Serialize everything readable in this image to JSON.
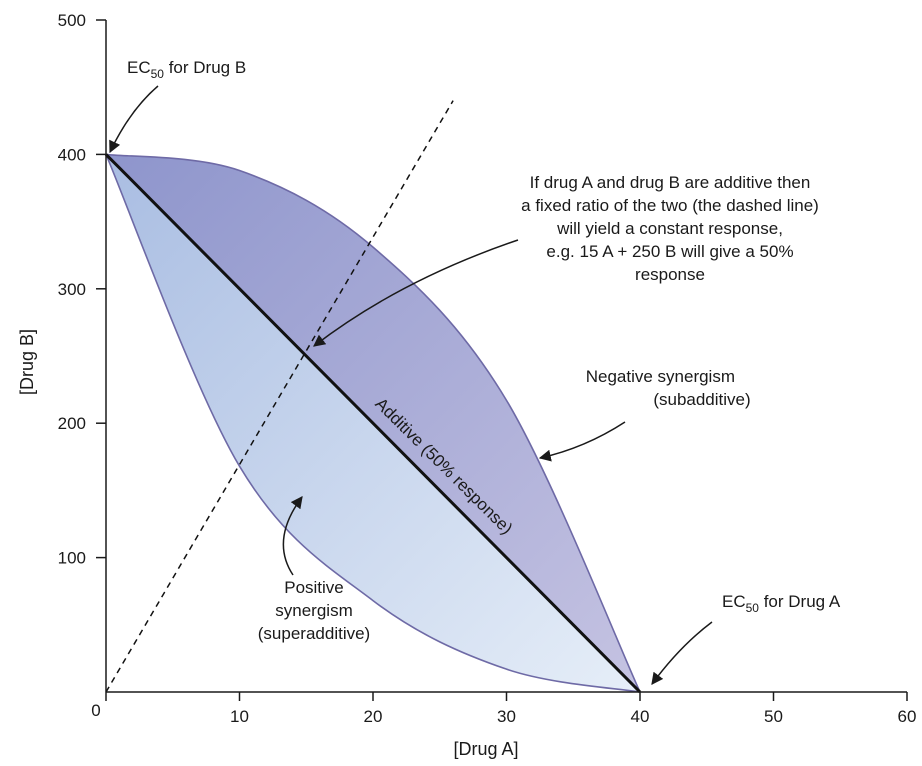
{
  "chart_data": {
    "type": "line",
    "xlabel": "[Drug A]",
    "ylabel": "[Drug B]",
    "xlim": [
      0,
      60
    ],
    "ylim": [
      0,
      500
    ],
    "x_ticks": [
      "0",
      "10",
      "20",
      "30",
      "40",
      "50",
      "60"
    ],
    "y_ticks": [
      "100",
      "200",
      "300",
      "400",
      "500"
    ],
    "grid": false,
    "series": [
      {
        "name": "Additive (50% response)",
        "x": [
          0,
          40
        ],
        "y": [
          400,
          0
        ]
      },
      {
        "name": "",
        "x": [
          0,
          10,
          20,
          30,
          40
        ],
        "y": [
          400,
          388,
          331,
          217,
          0
        ]
      },
      {
        "name": "",
        "x": [
          0,
          10,
          20,
          30,
          40
        ],
        "y": [
          400,
          168,
          68,
          17,
          0
        ]
      },
      {
        "name": "",
        "x": [
          0,
          26
        ],
        "y": [
          0,
          440
        ]
      }
    ],
    "annotations": {
      "ec50_b": {
        "prefix": "EC",
        "sub": "50",
        "suffix": " for Drug B",
        "point": [
          0,
          400
        ]
      },
      "ec50_a": {
        "prefix": "EC",
        "sub": "50",
        "suffix": " for Drug A",
        "point": [
          40,
          0
        ]
      },
      "additive_note": [
        "If drug A and drug B are additive then",
        "a fixed ratio of the two  (the dashed line)",
        "will yield a constant response,",
        "e.g. 15 A + 250 B  will give a 50%",
        "response"
      ],
      "additive_point": [
        15,
        250
      ],
      "negative": [
        "Negative synergism",
        "(subadditive)"
      ],
      "positive": [
        "Positive",
        "synergism",
        "(superadditive)"
      ],
      "additive_label": "Additive (50% response)"
    },
    "colors": {
      "upper_region": "#9fa6d4",
      "lower_region": "#c6d4ec",
      "curve": "#6e6aa6",
      "axis": "#1a1a1a"
    }
  }
}
